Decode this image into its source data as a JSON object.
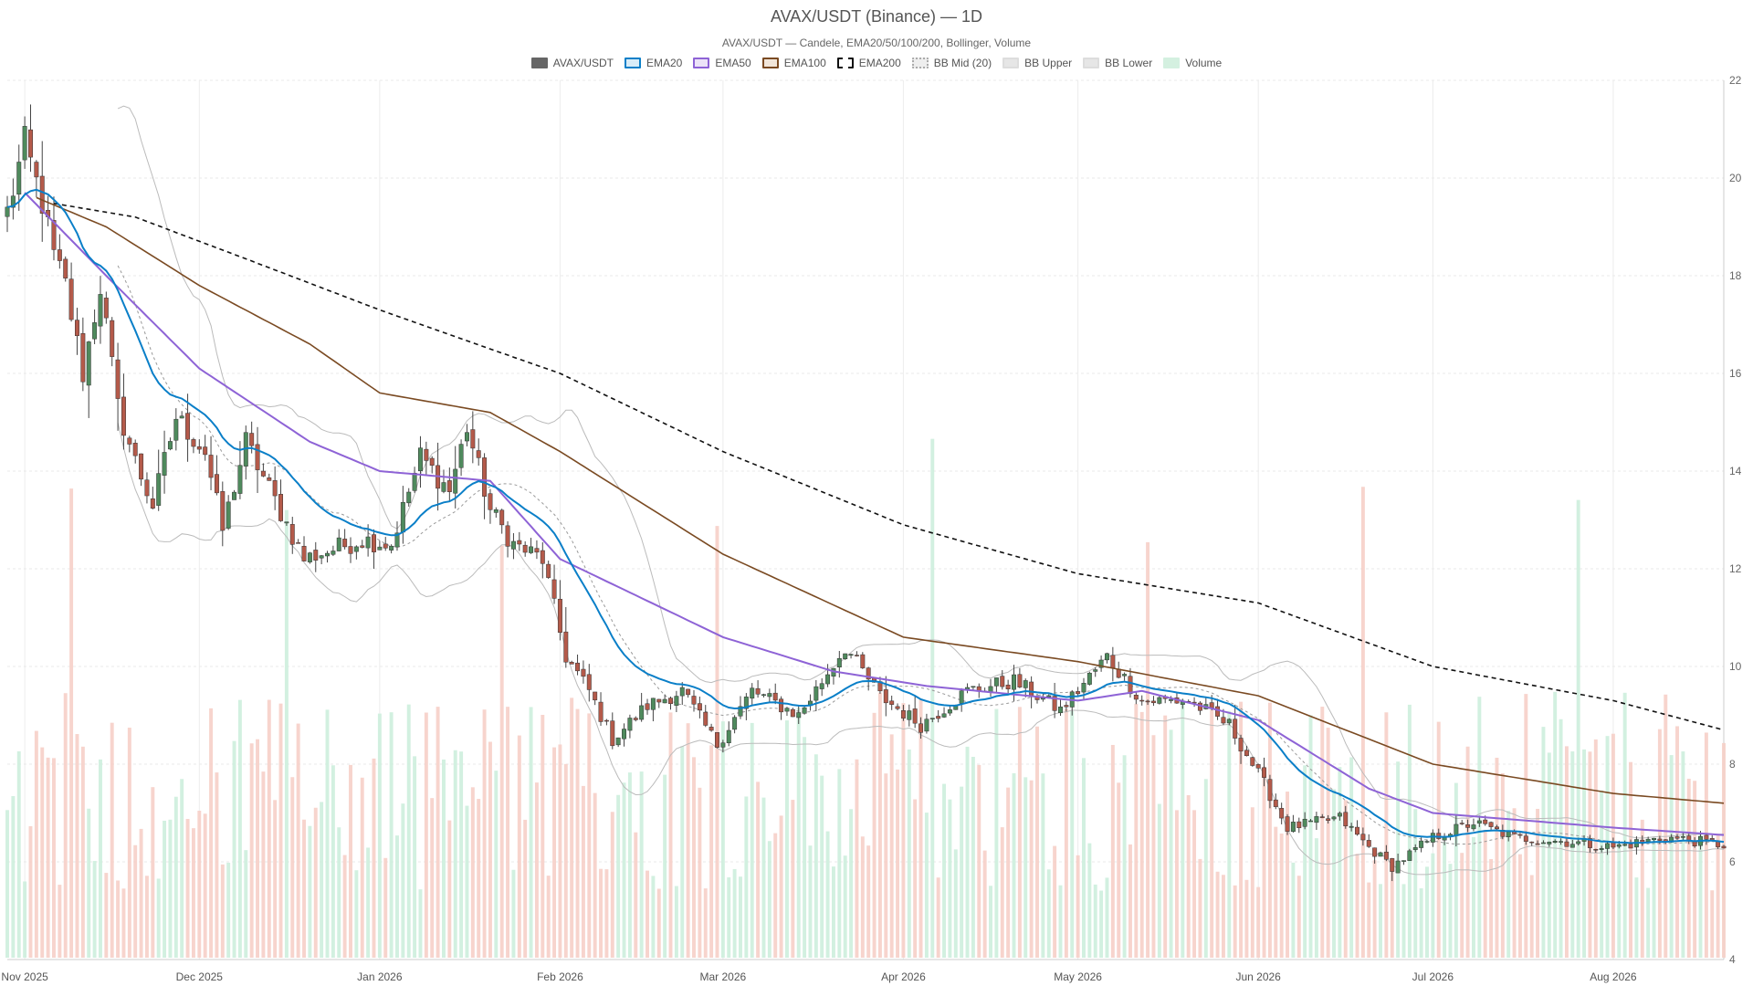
{
  "header": {
    "title": "AVAX/USDT (Binance) — 1D",
    "subtitle": "AVAX/USDT — Candele, EMA20/50/100/200, Bollinger, Volume"
  },
  "legend": [
    {
      "label": "AVAX/USDT",
      "color": "#666666",
      "fill": "#666666",
      "style": "solid"
    },
    {
      "label": "EMA20",
      "color": "#0a7fc8",
      "fill": "#d8ecf8",
      "style": "solid"
    },
    {
      "label": "EMA50",
      "color": "#8e63d6",
      "fill": "#ece3f8",
      "style": "solid"
    },
    {
      "label": "EMA100",
      "color": "#7a4a22",
      "fill": "#f2e6da",
      "style": "solid"
    },
    {
      "label": "EMA200",
      "color": "#111111",
      "fill": "#ffffff",
      "style": "dashed"
    },
    {
      "label": "BB Mid (20)",
      "color": "#aaaaaa",
      "fill": "#eeeeee",
      "style": "dotted"
    },
    {
      "label": "BB Upper",
      "color": "#dddddd",
      "fill": "#e6e6e6",
      "style": "solid"
    },
    {
      "label": "BB Lower",
      "color": "#dddddd",
      "fill": "#e6e6e6",
      "style": "solid"
    },
    {
      "label": "Volume",
      "color": "#d4f0e0",
      "fill": "#d4f0e0",
      "style": "solid"
    }
  ],
  "colors": {
    "up": "#4f8a5d",
    "down": "#b45a4a",
    "ema20": "#0a7fc8",
    "ema50": "#8e63d6",
    "ema100": "#7a4a22",
    "ema200": "#111111",
    "bb": "#bbbbbb",
    "vol_up": "#cdeedd",
    "vol_down": "#f6cfc8",
    "grid": "#e8e8e8"
  },
  "chart_data": {
    "type": "candlestick",
    "x_axis": {
      "start": "2025-10-29",
      "end": "2026-08-20",
      "ticks": [
        "Nov 2025",
        "Dec 2025",
        "Jan 2026",
        "Feb 2026",
        "Mar 2026",
        "Apr 2026",
        "May 2026",
        "Jun 2026",
        "Jul 2026",
        "Aug 2026"
      ],
      "tick_dates": [
        "2025-11-01",
        "2025-12-01",
        "2026-01-01",
        "2026-02-01",
        "2026-03-01",
        "2026-04-01",
        "2026-05-01",
        "2026-06-01",
        "2026-07-01",
        "2026-08-01"
      ]
    },
    "y_axis": {
      "ylim": [
        4,
        22
      ],
      "ticks": [
        4,
        6,
        8,
        10,
        12,
        14,
        16,
        18,
        20,
        22
      ],
      "position": "right"
    },
    "grid": true,
    "close_anchors": [
      [
        "2025-10-29",
        19.3
      ],
      [
        "2025-11-01",
        20.7
      ],
      [
        "2025-11-04",
        19.5
      ],
      [
        "2025-11-06",
        18.4
      ],
      [
        "2025-11-08",
        17.8
      ],
      [
        "2025-11-11",
        16.0
      ],
      [
        "2025-11-14",
        17.8
      ],
      [
        "2025-11-17",
        15.3
      ],
      [
        "2025-11-20",
        14.2
      ],
      [
        "2025-11-23",
        13.3
      ],
      [
        "2025-11-27",
        15.1
      ],
      [
        "2025-12-02",
        14.4
      ],
      [
        "2025-12-05",
        12.8
      ],
      [
        "2025-12-09",
        14.6
      ],
      [
        "2025-12-14",
        13.4
      ],
      [
        "2025-12-19",
        12.2
      ],
      [
        "2025-12-24",
        12.4
      ],
      [
        "2025-12-29",
        12.6
      ],
      [
        "2026-01-03",
        12.5
      ],
      [
        "2026-01-08",
        14.3
      ],
      [
        "2026-01-13",
        13.6
      ],
      [
        "2026-01-16",
        14.9
      ],
      [
        "2026-01-20",
        13.2
      ],
      [
        "2026-01-24",
        12.5
      ],
      [
        "2026-01-29",
        12.2
      ],
      [
        "2026-02-02",
        10.2
      ],
      [
        "2026-02-06",
        9.5
      ],
      [
        "2026-02-10",
        8.5
      ],
      [
        "2026-02-16",
        9.2
      ],
      [
        "2026-02-22",
        9.5
      ],
      [
        "2026-02-28",
        8.4
      ],
      [
        "2026-03-06",
        9.5
      ],
      [
        "2026-03-14",
        9.0
      ],
      [
        "2026-03-22",
        10.4
      ],
      [
        "2026-03-28",
        9.4
      ],
      [
        "2026-04-04",
        8.8
      ],
      [
        "2026-04-12",
        9.5
      ],
      [
        "2026-04-20",
        9.7
      ],
      [
        "2026-04-28",
        9.1
      ],
      [
        "2026-05-06",
        10.2
      ],
      [
        "2026-05-12",
        9.3
      ],
      [
        "2026-05-20",
        9.3
      ],
      [
        "2026-05-27",
        8.8
      ],
      [
        "2026-06-02",
        7.6
      ],
      [
        "2026-06-06",
        6.7
      ],
      [
        "2026-06-15",
        6.9
      ],
      [
        "2026-06-20",
        6.3
      ],
      [
        "2026-06-24",
        5.9
      ],
      [
        "2026-07-01",
        6.5
      ],
      [
        "2026-07-08",
        6.8
      ],
      [
        "2026-07-15",
        6.5
      ],
      [
        "2026-07-25",
        6.4
      ],
      [
        "2026-08-01",
        6.3
      ],
      [
        "2026-08-10",
        6.5
      ],
      [
        "2026-08-20",
        6.35
      ]
    ],
    "ema200_anchors": [
      [
        "2025-11-05",
        19.5
      ],
      [
        "2025-11-20",
        19.2
      ],
      [
        "2025-12-10",
        18.3
      ],
      [
        "2026-01-01",
        17.3
      ],
      [
        "2026-01-20",
        16.5
      ],
      [
        "2026-02-01",
        16.0
      ],
      [
        "2026-03-01",
        14.4
      ],
      [
        "2026-04-01",
        12.9
      ],
      [
        "2026-05-01",
        11.9
      ],
      [
        "2026-06-01",
        11.3
      ],
      [
        "2026-07-01",
        10.0
      ],
      [
        "2026-08-01",
        9.3
      ],
      [
        "2026-08-20",
        8.7
      ]
    ],
    "ema100_anchors": [
      [
        "2025-11-03",
        19.6
      ],
      [
        "2025-11-15",
        19.0
      ],
      [
        "2025-12-01",
        17.8
      ],
      [
        "2025-12-20",
        16.6
      ],
      [
        "2026-01-01",
        15.6
      ],
      [
        "2026-01-20",
        15.2
      ],
      [
        "2026-02-01",
        14.4
      ],
      [
        "2026-03-01",
        12.3
      ],
      [
        "2026-04-01",
        10.6
      ],
      [
        "2026-05-01",
        10.1
      ],
      [
        "2026-06-01",
        9.4
      ],
      [
        "2026-07-01",
        8.0
      ],
      [
        "2026-08-01",
        7.4
      ],
      [
        "2026-08-20",
        7.2
      ]
    ],
    "ema50_anchors": [
      [
        "2025-11-01",
        19.7
      ],
      [
        "2025-11-15",
        18.0
      ],
      [
        "2025-12-01",
        16.1
      ],
      [
        "2025-12-20",
        14.6
      ],
      [
        "2026-01-01",
        14.0
      ],
      [
        "2026-01-20",
        13.8
      ],
      [
        "2026-02-01",
        12.2
      ],
      [
        "2026-03-01",
        10.6
      ],
      [
        "2026-03-20",
        9.9
      ],
      [
        "2026-04-05",
        9.6
      ],
      [
        "2026-05-01",
        9.3
      ],
      [
        "2026-05-12",
        9.5
      ],
      [
        "2026-06-01",
        8.9
      ],
      [
        "2026-06-20",
        7.5
      ],
      [
        "2026-07-01",
        7.0
      ],
      [
        "2026-08-01",
        6.7
      ],
      [
        "2026-08-20",
        6.55
      ]
    ],
    "series_order": [
      "candles",
      "ema20",
      "ema50",
      "ema100",
      "ema200",
      "bb_mid",
      "bb_upper",
      "bb_lower",
      "volume"
    ]
  }
}
